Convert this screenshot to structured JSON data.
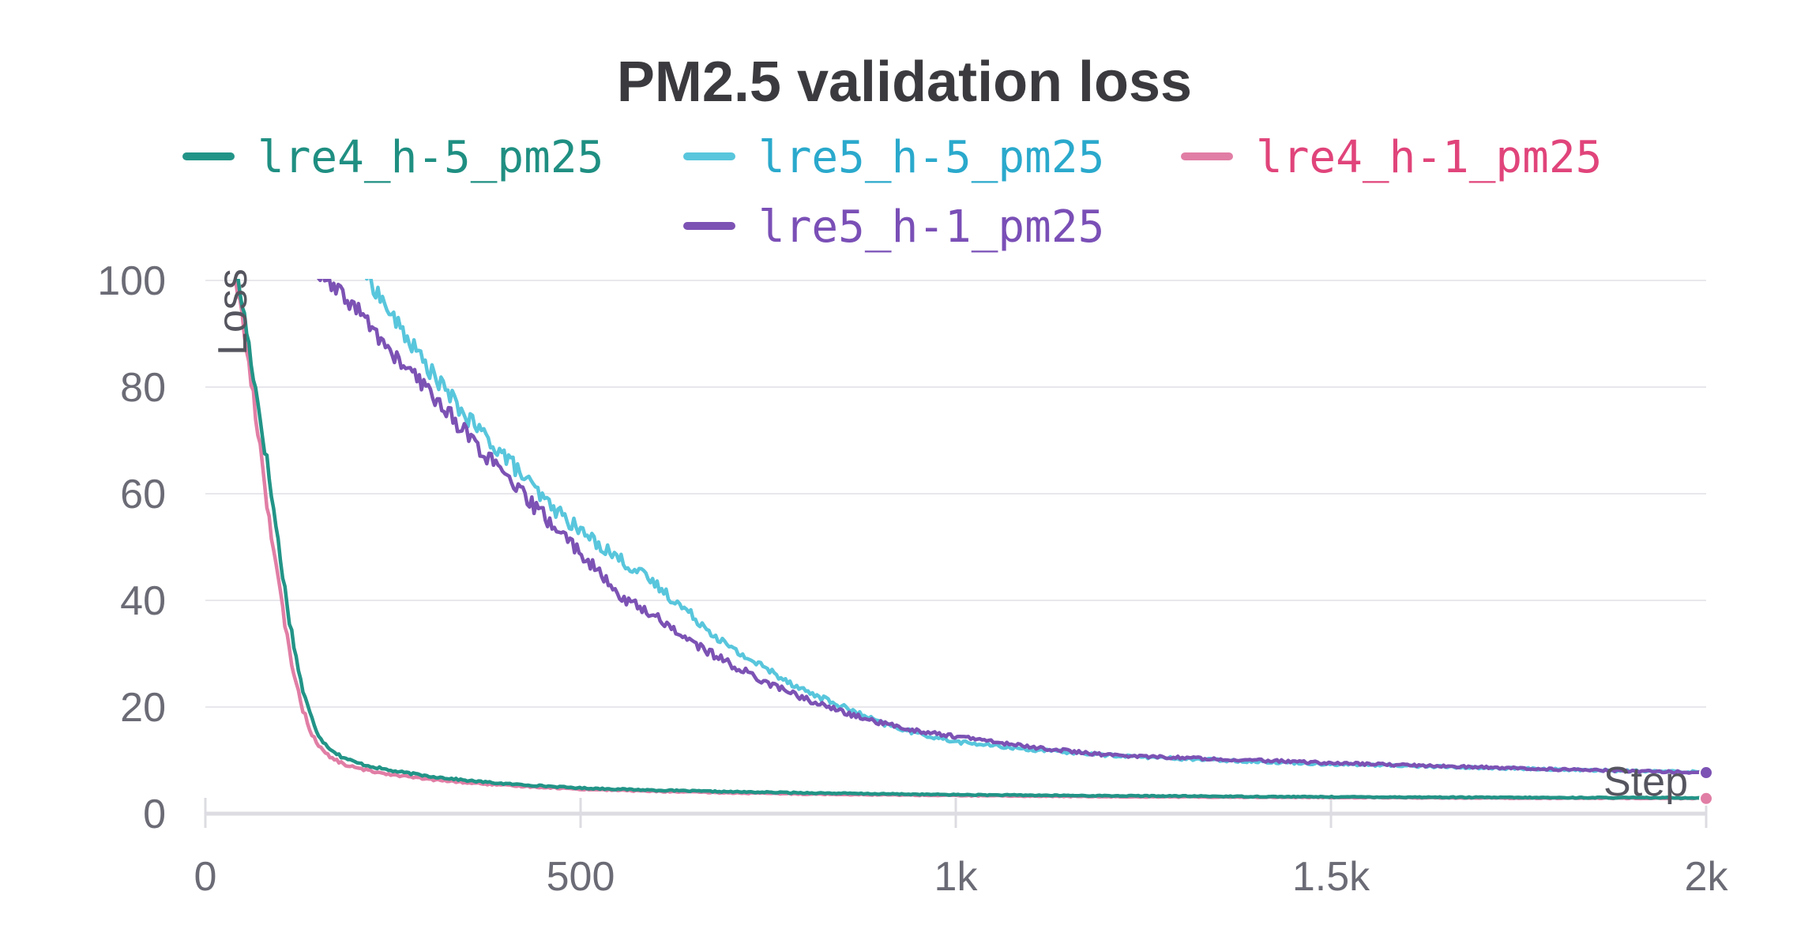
{
  "chart_data": {
    "type": "line",
    "title": "PM2.5 validation loss",
    "xlabel": "Step",
    "ylabel": "Loss",
    "xlim": [
      0,
      2000
    ],
    "ylim": [
      0,
      100
    ],
    "x_ticks": [
      {
        "value": 0,
        "label": "0"
      },
      {
        "value": 500,
        "label": "500"
      },
      {
        "value": 1000,
        "label": "1k"
      },
      {
        "value": 1500,
        "label": "1.5k"
      },
      {
        "value": 2000,
        "label": "2k"
      }
    ],
    "y_ticks": [
      {
        "value": 0,
        "label": "0"
      },
      {
        "value": 20,
        "label": "20"
      },
      {
        "value": 40,
        "label": "40"
      },
      {
        "value": 60,
        "label": "60"
      },
      {
        "value": 80,
        "label": "80"
      },
      {
        "value": 100,
        "label": "100"
      }
    ],
    "grid": true,
    "legend_position": "top",
    "series": [
      {
        "name": "lre4_h-5_pm25",
        "color": "#229487",
        "text_color": "#1f8f82",
        "x": [
          40,
          50,
          60,
          70,
          80,
          90,
          100,
          110,
          120,
          130,
          140,
          150,
          160,
          170,
          180,
          190,
          200,
          220,
          250,
          300,
          350,
          400,
          500,
          600,
          700,
          800,
          900,
          1000,
          1100,
          1200,
          1300,
          1400,
          1500,
          1600,
          1700,
          1800,
          1900,
          2000
        ],
        "y": [
          102,
          95,
          86,
          77,
          68,
          58,
          48,
          38,
          30,
          23,
          18.5,
          15,
          13,
          11.8,
          10.8,
          10.2,
          9.6,
          8.9,
          8,
          7,
          6.2,
          5.6,
          4.8,
          4.4,
          4.1,
          3.9,
          3.7,
          3.55,
          3.45,
          3.35,
          3.3,
          3.2,
          3.15,
          3.1,
          3.05,
          3,
          3,
          2.95
        ]
      },
      {
        "name": "lre5_h-5_pm25",
        "color": "#58c6dc",
        "text_color": "#2aa9cc",
        "x": [
          215,
          250,
          300,
          350,
          400,
          450,
          500,
          550,
          600,
          650,
          700,
          750,
          800,
          850,
          900,
          950,
          1000,
          1100,
          1200,
          1300,
          1400,
          1500,
          1600,
          1700,
          1800,
          1900,
          2000
        ],
        "y": [
          101,
          93,
          83,
          74,
          67,
          59,
          53,
          48,
          43,
          37,
          31,
          27,
          23,
          20,
          17,
          15,
          13.5,
          12,
          11,
          10.3,
          9.8,
          9.3,
          9,
          8.6,
          8.3,
          8,
          7.8
        ]
      },
      {
        "name": "lre4_h-1_pm25",
        "color": "#e17ea5",
        "text_color": "#e0447a",
        "x": [
          40,
          50,
          60,
          70,
          80,
          90,
          100,
          110,
          120,
          130,
          140,
          150,
          160,
          170,
          180,
          190,
          200,
          220,
          250,
          300,
          350,
          400,
          500,
          600,
          700,
          800,
          900,
          1000,
          1100,
          1200,
          1300,
          1400,
          1500,
          1600,
          1700,
          1800,
          1900,
          2000
        ],
        "y": [
          101,
          92,
          82,
          72,
          61,
          50,
          41,
          32,
          25,
          19.5,
          15.5,
          13,
          11.3,
          10.3,
          9.6,
          9,
          8.6,
          8,
          7.3,
          6.4,
          5.8,
          5.3,
          4.6,
          4.2,
          3.9,
          3.7,
          3.55,
          3.4,
          3.3,
          3.2,
          3.15,
          3.1,
          3.05,
          3,
          2.95,
          2.9,
          2.9,
          2.85
        ]
      },
      {
        "name": "lre5_h-1_pm25",
        "color": "#7c52b4",
        "text_color": "#7a4fb6",
        "x": [
          150,
          200,
          250,
          300,
          350,
          400,
          450,
          500,
          550,
          600,
          650,
          700,
          750,
          800,
          850,
          900,
          950,
          1000,
          1100,
          1200,
          1300,
          1400,
          1500,
          1600,
          1700,
          1800,
          1900,
          2000
        ],
        "y": [
          101,
          95,
          86,
          79,
          71,
          63,
          56,
          49,
          41,
          37,
          32,
          28,
          24.5,
          21.5,
          19,
          17,
          15.5,
          14.5,
          12.5,
          11,
          10.5,
          10,
          9.5,
          9.1,
          8.7,
          8.3,
          8,
          7.7
        ]
      }
    ]
  }
}
